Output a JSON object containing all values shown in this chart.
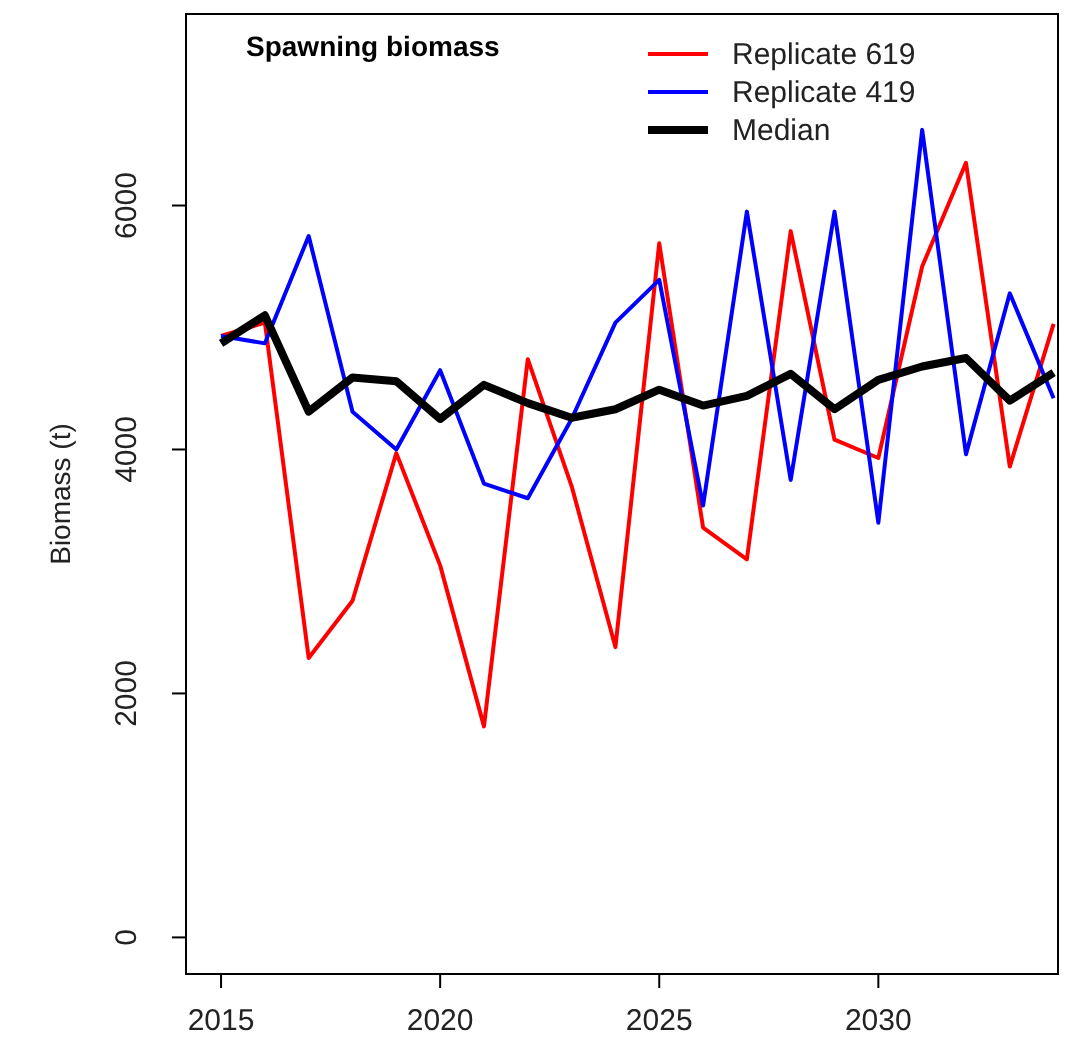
{
  "chart_data": {
    "type": "line",
    "title": "Spawning biomass",
    "ylabel": "Biomass (t)",
    "x": [
      2015,
      2016,
      2017,
      2018,
      2019,
      2020,
      2021,
      2022,
      2023,
      2024,
      2025,
      2026,
      2027,
      2028,
      2029,
      2030,
      2031,
      2032,
      2033,
      2034
    ],
    "series": [
      {
        "name": "Replicate 619",
        "color": "#ff0000",
        "values": [
          4930,
          5040,
          2290,
          2760,
          3970,
          3050,
          1730,
          4740,
          3700,
          2380,
          5690,
          3360,
          3100,
          5790,
          4080,
          3930,
          5500,
          6350,
          3860,
          5030
        ]
      },
      {
        "name": "Replicate 419",
        "color": "#0000ff",
        "values": [
          4930,
          4870,
          5750,
          4310,
          4000,
          4650,
          3720,
          3600,
          4250,
          5040,
          5390,
          3540,
          5950,
          3750,
          5950,
          3400,
          6620,
          3960,
          5280,
          4420
        ]
      },
      {
        "name": "Median",
        "color": "#000000",
        "values": [
          4870,
          5100,
          4310,
          4590,
          4560,
          4250,
          4530,
          4380,
          4260,
          4330,
          4490,
          4360,
          4440,
          4620,
          4330,
          4570,
          4680,
          4750,
          4400,
          4630
        ]
      }
    ],
    "xlim": [
      2014.2,
      2034.1
    ],
    "ylim": [
      -300,
      7570
    ],
    "xticks": [
      2015,
      2020,
      2025,
      2030
    ],
    "yticks": [
      0,
      2000,
      4000,
      6000
    ],
    "legend": "top right",
    "grid": false,
    "marker": "none",
    "line_style": "solid"
  }
}
